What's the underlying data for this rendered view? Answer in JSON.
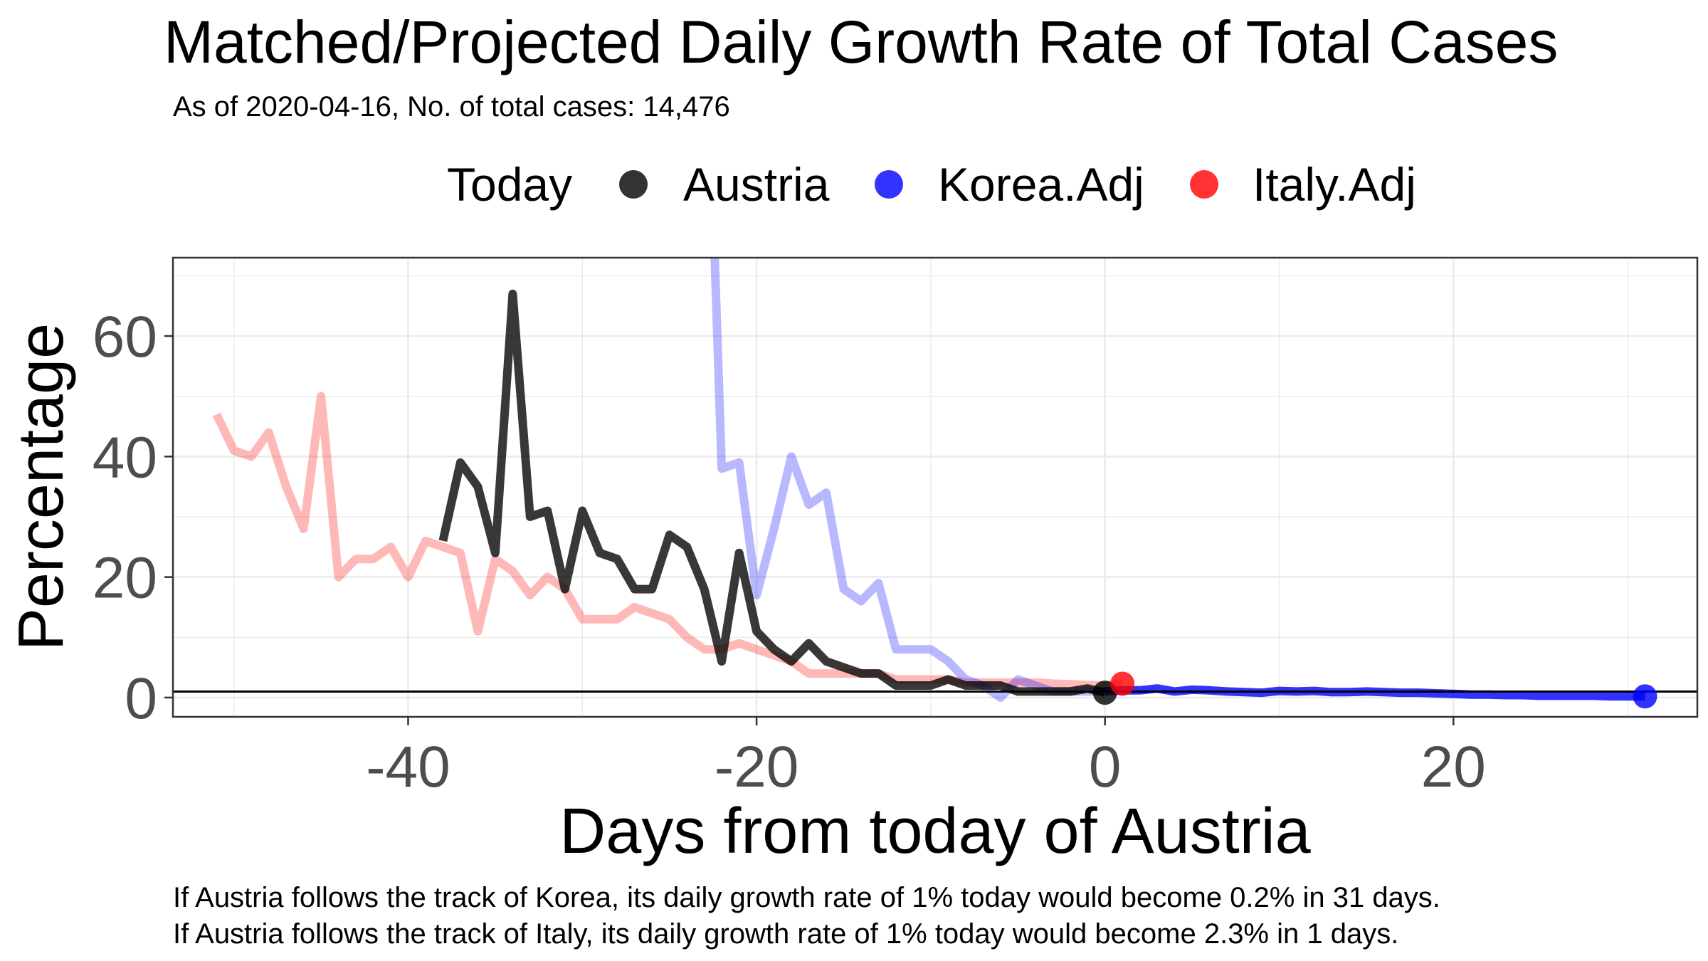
{
  "chart_data": {
    "type": "line",
    "title": "Matched/Projected Daily Growth Rate of Total Cases",
    "subtitle": "As of 2020-04-16, No. of total cases: 14,476",
    "xlabel": "Days from today of Austria",
    "ylabel": "Percentage",
    "xlim": [
      -53.5,
      34
    ],
    "ylim": [
      -3.2,
      73
    ],
    "x_ticks": [
      -40,
      -20,
      0,
      20
    ],
    "y_ticks": [
      0,
      20,
      40,
      60
    ],
    "grid": true,
    "reference_line_y": 1,
    "legend": {
      "title": "Today",
      "position": "top",
      "entries": [
        {
          "label": "Austria",
          "color": "#000000"
        },
        {
          "label": "Korea.Adj",
          "color": "#0000ff"
        },
        {
          "label": "Italy.Adj",
          "color": "#ff0000"
        }
      ]
    },
    "series": [
      {
        "name": "Italy.Adj",
        "color": "#ff0000",
        "x": [
          -51,
          -50,
          -49,
          -48,
          -47,
          -46,
          -45,
          -44,
          -43,
          -42,
          -41,
          -40,
          -39,
          -38,
          -37,
          -36,
          -35,
          -34,
          -33,
          -32,
          -31,
          -30,
          -29,
          -28,
          -27,
          -26,
          -25,
          -24,
          -23,
          -22,
          -21,
          -20,
          -19,
          -18,
          -17,
          -16,
          -15,
          -14,
          -13,
          -12,
          -11,
          -10,
          -9,
          -8,
          -7,
          -6,
          -5,
          -4,
          -3,
          -2,
          -1,
          0,
          1
        ],
        "values": [
          47,
          41,
          40,
          44,
          35,
          28,
          50,
          20,
          23,
          23,
          25,
          20,
          26,
          25,
          24,
          11,
          23,
          21,
          17,
          20,
          18,
          13,
          13,
          13,
          15,
          14,
          13,
          10,
          8,
          8,
          9,
          8,
          7,
          6,
          4,
          4,
          4,
          4,
          4,
          3,
          3,
          3,
          3,
          2.5,
          2.5,
          2.5,
          2.5,
          2.5,
          2.3,
          2.2,
          2.1,
          2,
          2.3
        ]
      },
      {
        "name": "Korea.Adj (history)",
        "color": "#0000ff",
        "x": [
          -22.4,
          -22,
          -21,
          -20,
          -19,
          -18,
          -17,
          -16,
          -15,
          -14,
          -13,
          -12,
          -11,
          -10,
          -9,
          -8,
          -7,
          -6,
          -5,
          -4,
          -3,
          -2,
          -1,
          0
        ],
        "values": [
          73,
          38,
          39,
          17,
          28,
          40,
          32,
          34,
          18,
          16,
          19,
          8,
          8,
          8,
          6,
          3,
          2,
          0,
          3,
          2,
          1,
          1,
          1,
          1
        ]
      },
      {
        "name": "Korea.Adj (projection)",
        "color": "#0000ff",
        "x": [
          0,
          1,
          2,
          3,
          4,
          5,
          6,
          7,
          8,
          9,
          10,
          11,
          12,
          13,
          14,
          15,
          16,
          17,
          18,
          19,
          20,
          21,
          22,
          23,
          24,
          25,
          26,
          27,
          28,
          29,
          30,
          31
        ],
        "values": [
          1,
          1.2,
          1.2,
          1.5,
          1,
          1.3,
          1.2,
          1,
          0.9,
          0.8,
          1.1,
          1,
          1.1,
          0.9,
          0.9,
          1,
          0.9,
          0.8,
          0.8,
          0.7,
          0.6,
          0.5,
          0.5,
          0.4,
          0.4,
          0.3,
          0.3,
          0.3,
          0.3,
          0.2,
          0.2,
          0.2
        ]
      },
      {
        "name": "Austria",
        "color": "#000000",
        "x": [
          -38,
          -37,
          -36,
          -35,
          -34,
          -33,
          -32,
          -31,
          -30,
          -29,
          -28,
          -27,
          -26,
          -25,
          -24,
          -23,
          -22,
          -21,
          -20,
          -19,
          -18,
          -17,
          -16,
          -15,
          -14,
          -13,
          -12,
          -11,
          -10,
          -9,
          -8,
          -7,
          -6,
          -5,
          -4,
          -3,
          -2,
          -1,
          0
        ],
        "values": [
          26,
          39,
          35,
          24,
          67,
          30,
          31,
          18,
          31,
          24,
          23,
          18,
          18,
          27,
          25,
          18,
          6,
          24,
          11,
          8,
          6,
          9,
          6,
          5,
          4,
          4,
          2,
          2,
          2,
          3,
          2,
          2,
          2,
          1,
          1,
          1,
          1,
          1.5,
          0.8
        ]
      }
    ],
    "points": [
      {
        "series": "Austria",
        "x": 0,
        "y": 0.8,
        "color": "#000000"
      },
      {
        "series": "Italy.Adj",
        "x": 1,
        "y": 2.3,
        "color": "#ff0000"
      },
      {
        "series": "Korea.Adj",
        "x": 31,
        "y": 0.2,
        "color": "#0000ff"
      }
    ],
    "annotations": [
      "If Austria follows the track of Korea, its daily growth rate of 1% today would become 0.2% in 31 days.",
      "If Austria follows the track of Italy, its daily growth rate of 1% today would become 2.3% in 1 days."
    ]
  }
}
